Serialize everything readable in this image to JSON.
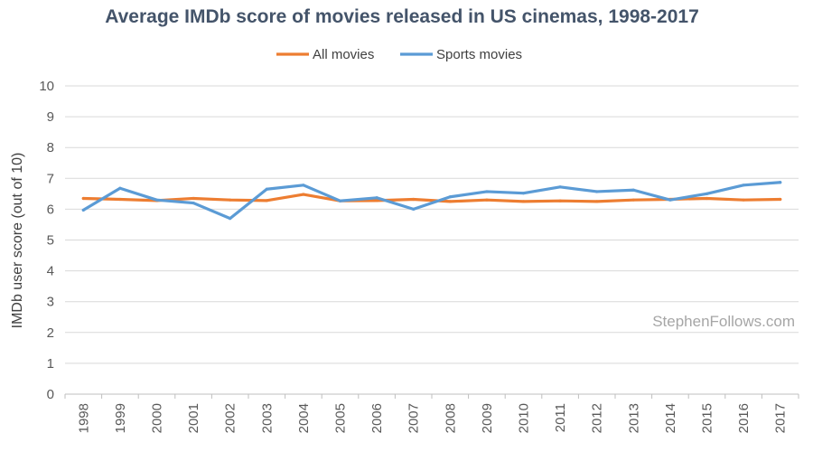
{
  "chart_data": {
    "type": "line",
    "title": "Average IMDb score of movies released in US cinemas, 1998-2017",
    "xlabel": "",
    "ylabel": "IMDb user score (out of 10)",
    "ylim": [
      0,
      10
    ],
    "yticks": [
      0,
      1,
      2,
      3,
      4,
      5,
      6,
      7,
      8,
      9,
      10
    ],
    "grid": true,
    "legend_position": "top-center",
    "categories": [
      "1998",
      "1999",
      "2000",
      "2001",
      "2002",
      "2003",
      "2004",
      "2005",
      "2006",
      "2007",
      "2008",
      "2009",
      "2010",
      "2011",
      "2012",
      "2013",
      "2014",
      "2015",
      "2016",
      "2017"
    ],
    "series": [
      {
        "name": "All movies",
        "color": "#ed7d31",
        "values": [
          6.35,
          6.32,
          6.28,
          6.35,
          6.3,
          6.28,
          6.48,
          6.27,
          6.28,
          6.32,
          6.25,
          6.3,
          6.25,
          6.27,
          6.25,
          6.3,
          6.32,
          6.35,
          6.3,
          6.32
        ]
      },
      {
        "name": "Sports movies",
        "color": "#5b9bd5",
        "values": [
          5.97,
          6.68,
          6.3,
          6.2,
          5.7,
          6.65,
          6.78,
          6.27,
          6.37,
          6.0,
          6.4,
          6.57,
          6.52,
          6.72,
          6.57,
          6.62,
          6.3,
          6.5,
          6.78,
          6.87
        ]
      }
    ],
    "watermark": "StephenFollows.com"
  }
}
